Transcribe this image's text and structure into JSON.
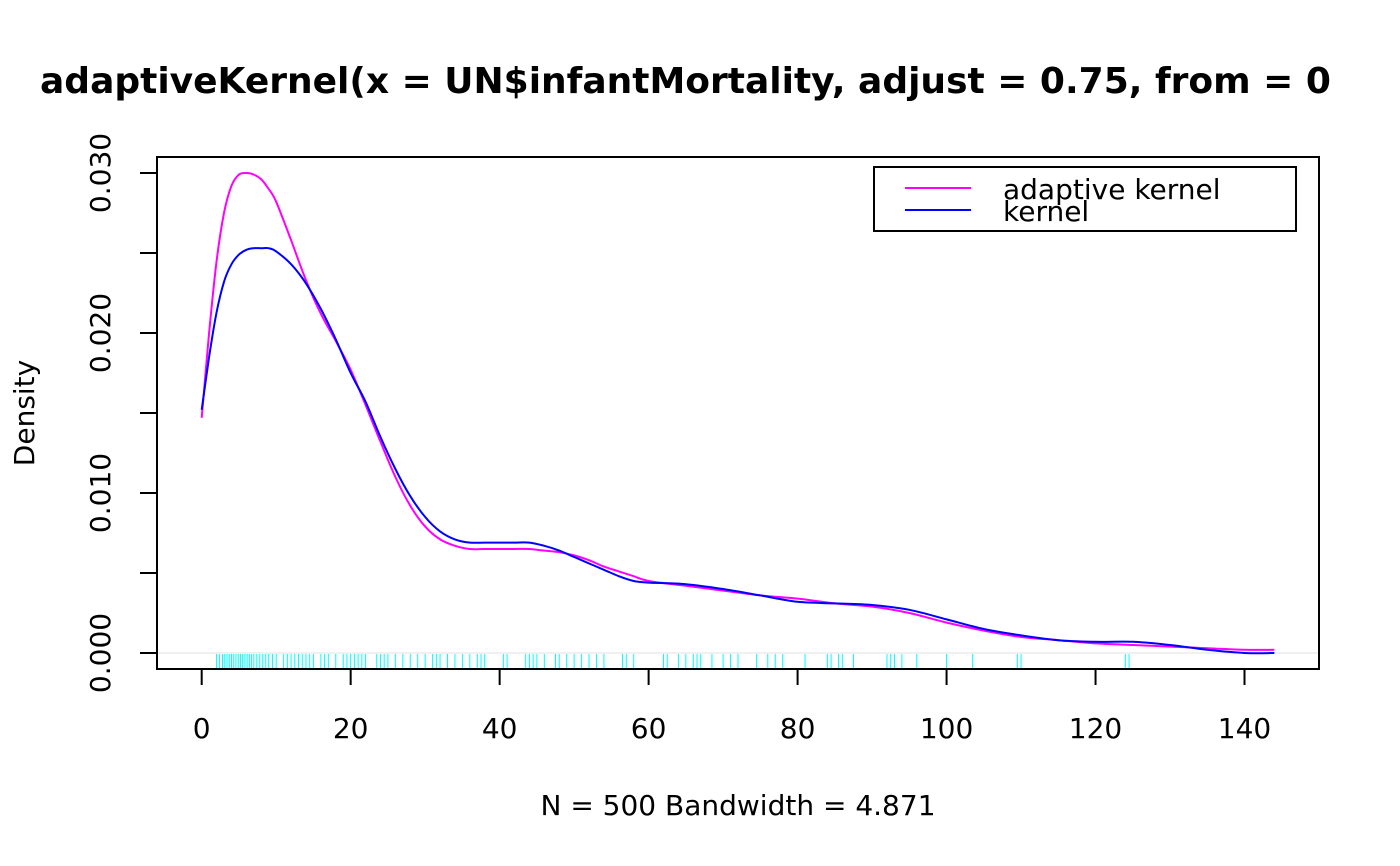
{
  "chart_data": {
    "type": "line",
    "title": "adaptiveKernel(x = UN$infantMortality, adjust = 0.75, from = 0",
    "xlabel": "N = 500   Bandwidth = 4.871",
    "ylabel": "Density",
    "xlim": [
      -6,
      150
    ],
    "ylim": [
      -0.001,
      0.031
    ],
    "x_ticks": [
      0,
      20,
      40,
      60,
      80,
      100,
      120,
      140
    ],
    "x_tick_labels": [
      "0",
      "20",
      "40",
      "60",
      "80",
      "100",
      "120",
      "140"
    ],
    "y_ticks": [
      0.0,
      0.005,
      0.01,
      0.015,
      0.02,
      0.025,
      0.03
    ],
    "y_tick_labels": [
      "0.000",
      "",
      "0.010",
      "",
      "0.020",
      "",
      "0.030"
    ],
    "grid": false,
    "legend_position": "top-right",
    "series": [
      {
        "name": "adaptive kernel",
        "color": "#ff00ff",
        "x": [
          0,
          1,
          2,
          3,
          4,
          5,
          6,
          7,
          8,
          9,
          10,
          12,
          14,
          16,
          18,
          20,
          22,
          24,
          26,
          28,
          30,
          32,
          34,
          36,
          38,
          40,
          42,
          44,
          46,
          48,
          50,
          52,
          54,
          56,
          58,
          60,
          65,
          70,
          75,
          80,
          85,
          90,
          95,
          100,
          105,
          110,
          115,
          120,
          125,
          130,
          135,
          140,
          144
        ],
        "y": [
          0.0147,
          0.02,
          0.0245,
          0.0275,
          0.0292,
          0.0299,
          0.03,
          0.0299,
          0.0296,
          0.029,
          0.0282,
          0.0258,
          0.0233,
          0.0212,
          0.0195,
          0.0177,
          0.0155,
          0.0132,
          0.011,
          0.0092,
          0.0079,
          0.0071,
          0.0067,
          0.0065,
          0.0065,
          0.0065,
          0.0065,
          0.0065,
          0.0064,
          0.0063,
          0.0061,
          0.0058,
          0.0054,
          0.0051,
          0.0048,
          0.0045,
          0.0042,
          0.0039,
          0.0036,
          0.0034,
          0.0031,
          0.0029,
          0.0025,
          0.0019,
          0.0014,
          0.001,
          0.0008,
          0.0006,
          0.0005,
          0.0004,
          0.0003,
          0.0002,
          0.0002
        ]
      },
      {
        "name": "kernel",
        "color": "#0000ff",
        "x": [
          0,
          1,
          2,
          3,
          4,
          5,
          6,
          7,
          8,
          9,
          10,
          12,
          14,
          16,
          18,
          20,
          22,
          24,
          26,
          28,
          30,
          32,
          34,
          36,
          38,
          40,
          42,
          44,
          46,
          48,
          50,
          52,
          54,
          56,
          58,
          60,
          65,
          70,
          75,
          80,
          85,
          90,
          95,
          100,
          105,
          110,
          115,
          120,
          125,
          130,
          135,
          140,
          144
        ],
        "y": [
          0.0152,
          0.0185,
          0.0213,
          0.0232,
          0.0243,
          0.0249,
          0.0252,
          0.0253,
          0.0253,
          0.0253,
          0.0251,
          0.0243,
          0.0231,
          0.0215,
          0.0196,
          0.0175,
          0.0157,
          0.0135,
          0.0115,
          0.0098,
          0.0085,
          0.0076,
          0.0071,
          0.0069,
          0.0069,
          0.0069,
          0.0069,
          0.0069,
          0.0067,
          0.0064,
          0.006,
          0.0056,
          0.0052,
          0.0048,
          0.0045,
          0.0044,
          0.0043,
          0.004,
          0.0036,
          0.0032,
          0.0031,
          0.003,
          0.0027,
          0.0021,
          0.0015,
          0.0011,
          0.0008,
          0.0007,
          0.0007,
          0.0005,
          0.0002,
          0.0,
          0.0
        ]
      }
    ],
    "rug": {
      "color": "#00ffff",
      "values": [
        2,
        2.4,
        2.8,
        3.1,
        3.4,
        3.7,
        4,
        4.3,
        4.6,
        4.9,
        5.2,
        5.5,
        5.8,
        6.1,
        6.4,
        6.7,
        7,
        7.4,
        7.8,
        8.2,
        8.6,
        9,
        9.5,
        10,
        11,
        11.5,
        12,
        12.5,
        13,
        13.5,
        14,
        14.5,
        15,
        16,
        16.5,
        17,
        18,
        19,
        19.5,
        20,
        20.5,
        21,
        21.5,
        22,
        23.5,
        24,
        24.5,
        25,
        26,
        27,
        28,
        29,
        30,
        31,
        31.5,
        32,
        33,
        34,
        35,
        36,
        37,
        37.5,
        38,
        40.5,
        41,
        43.5,
        44,
        44.5,
        45,
        46,
        47.5,
        48,
        49,
        50,
        51,
        52,
        53,
        54,
        56.5,
        57,
        58,
        62,
        62.5,
        64,
        65,
        66,
        66.5,
        67,
        68.5,
        70,
        71,
        72,
        74.5,
        76,
        77,
        78,
        81,
        84,
        84.5,
        85.5,
        86,
        87.5,
        92,
        92.5,
        93,
        94,
        96,
        100,
        103.5,
        109.5,
        110,
        124,
        124.5
      ]
    }
  }
}
